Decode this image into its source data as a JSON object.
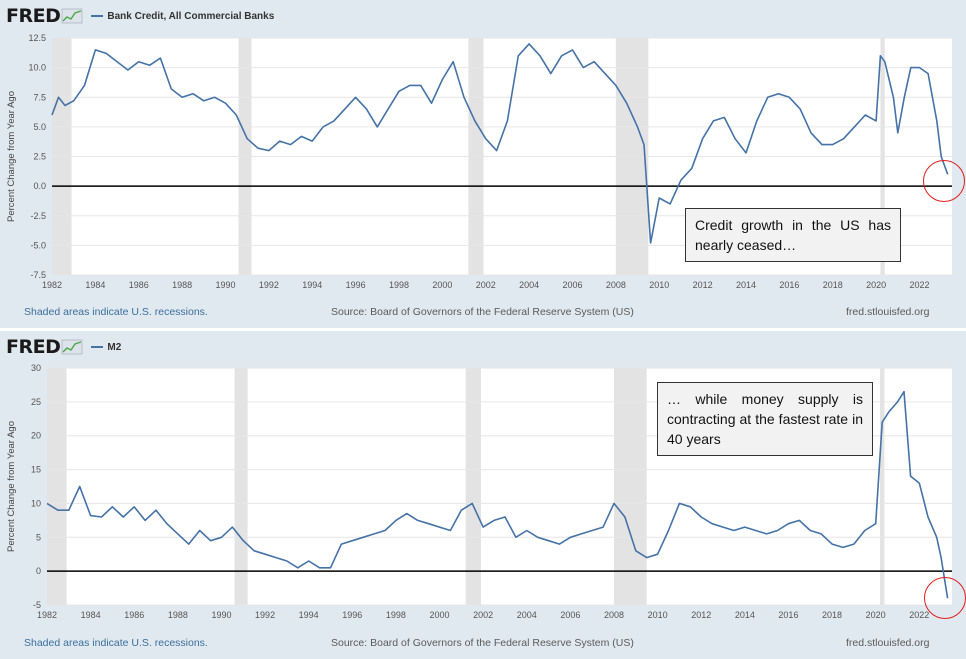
{
  "charts": [
    {
      "brand": "FRED",
      "series_label": "Bank Credit, All Commercial Banks",
      "footer_left": "Shaded areas indicate U.S. recessions.",
      "footer_mid": "Source: Board of Governors of the Federal Reserve System (US)",
      "footer_right": "fred.stlouisfed.org",
      "callout": "Credit growth in the US has nearly ceased…"
    },
    {
      "brand": "FRED",
      "series_label": "M2",
      "footer_left": "Shaded areas indicate U.S. recessions.",
      "footer_mid": "Source: Board of Governors of the Federal Reserve System (US)",
      "footer_right": "fred.stlouisfed.org",
      "callout": "… while money supply is contracting at the fastest rate in 40 years"
    }
  ],
  "colors": {
    "series": "#4572a7",
    "recession": "#e3e3e3",
    "callout_ring": "#e21d1d",
    "zero_line": "#000000"
  },
  "chart_data": [
    {
      "type": "line",
      "ylabel": "Percent Change from Year Ago",
      "xlim": [
        1982.0,
        2023.5
      ],
      "ylim": [
        -7.5,
        12.5
      ],
      "yticks": [
        12.5,
        10.0,
        7.5,
        5.0,
        2.5,
        0.0,
        -2.5,
        -5.0,
        -7.5
      ],
      "xticks": [
        1982,
        1984,
        1986,
        1988,
        1990,
        1992,
        1994,
        1996,
        1998,
        2000,
        2002,
        2004,
        2006,
        2008,
        2010,
        2012,
        2014,
        2016,
        2018,
        2020,
        2022
      ],
      "recessions": [
        [
          1982.0,
          1982.9
        ],
        [
          1990.6,
          1991.2
        ],
        [
          2001.2,
          2001.9
        ],
        [
          2008.0,
          2009.5
        ],
        [
          2020.2,
          2020.4
        ]
      ],
      "reference_line": 0,
      "series": [
        {
          "name": "Bank Credit, All Commercial Banks",
          "x": [
            1982.0,
            1982.3,
            1982.6,
            1983.0,
            1983.5,
            1984.0,
            1984.5,
            1985.0,
            1985.5,
            1986.0,
            1986.5,
            1987.0,
            1987.5,
            1988.0,
            1988.5,
            1989.0,
            1989.5,
            1990.0,
            1990.5,
            1991.0,
            1991.5,
            1992.0,
            1992.5,
            1993.0,
            1993.5,
            1994.0,
            1994.5,
            1995.0,
            1995.5,
            1996.0,
            1996.5,
            1997.0,
            1997.5,
            1998.0,
            1998.5,
            1999.0,
            1999.5,
            2000.0,
            2000.5,
            2001.0,
            2001.5,
            2002.0,
            2002.5,
            2003.0,
            2003.5,
            2004.0,
            2004.5,
            2005.0,
            2005.5,
            2006.0,
            2006.5,
            2007.0,
            2007.5,
            2008.0,
            2008.5,
            2009.0,
            2009.3,
            2009.6,
            2010.0,
            2010.5,
            2011.0,
            2011.5,
            2012.0,
            2012.5,
            2013.0,
            2013.5,
            2014.0,
            2014.5,
            2015.0,
            2015.5,
            2016.0,
            2016.5,
            2017.0,
            2017.5,
            2018.0,
            2018.5,
            2019.0,
            2019.5,
            2020.0,
            2020.2,
            2020.4,
            2020.8,
            2021.0,
            2021.3,
            2021.6,
            2022.0,
            2022.4,
            2022.8,
            2023.0,
            2023.3
          ],
          "values": [
            6.0,
            7.5,
            6.8,
            7.2,
            8.5,
            11.5,
            11.2,
            10.5,
            9.8,
            10.5,
            10.2,
            10.8,
            8.2,
            7.5,
            7.8,
            7.2,
            7.5,
            7.0,
            6.0,
            4.0,
            3.2,
            3.0,
            3.8,
            3.5,
            4.2,
            3.8,
            5.0,
            5.5,
            6.5,
            7.5,
            6.5,
            5.0,
            6.5,
            8.0,
            8.5,
            8.5,
            7.0,
            9.0,
            10.5,
            7.5,
            5.5,
            4.0,
            3.0,
            5.5,
            11.0,
            12.0,
            11.0,
            9.5,
            11.0,
            11.5,
            10.0,
            10.5,
            9.5,
            8.5,
            7.0,
            5.0,
            3.5,
            -4.8,
            -1.0,
            -1.5,
            0.5,
            1.5,
            4.0,
            5.5,
            5.8,
            4.0,
            2.8,
            5.5,
            7.5,
            7.8,
            7.5,
            6.5,
            4.5,
            3.5,
            3.5,
            4.0,
            5.0,
            6.0,
            5.5,
            11.0,
            10.5,
            7.5,
            4.5,
            7.5,
            10.0,
            10.0,
            9.5,
            5.5,
            2.5,
            1.0
          ]
        }
      ]
    },
    {
      "type": "line",
      "ylabel": "Percent Change from Year Ago",
      "xlim": [
        1982.0,
        2023.5
      ],
      "ylim": [
        -5,
        30
      ],
      "yticks": [
        30,
        25,
        20,
        15,
        10,
        5,
        0,
        -5
      ],
      "xticks": [
        1982,
        1984,
        1986,
        1988,
        1990,
        1992,
        1994,
        1996,
        1998,
        2000,
        2002,
        2004,
        2006,
        2008,
        2010,
        2012,
        2014,
        2016,
        2018,
        2020,
        2022
      ],
      "recessions": [
        [
          1982.0,
          1982.9
        ],
        [
          1990.6,
          1991.2
        ],
        [
          2001.2,
          2001.9
        ],
        [
          2008.0,
          2009.5
        ],
        [
          2020.2,
          2020.4
        ]
      ],
      "reference_line": 0,
      "series": [
        {
          "name": "M2",
          "x": [
            1982.0,
            1982.5,
            1983.0,
            1983.5,
            1984.0,
            1984.5,
            1985.0,
            1985.5,
            1986.0,
            1986.5,
            1987.0,
            1987.5,
            1988.0,
            1988.5,
            1989.0,
            1989.5,
            1990.0,
            1990.5,
            1991.0,
            1991.5,
            1992.0,
            1992.5,
            1993.0,
            1993.5,
            1994.0,
            1994.5,
            1995.0,
            1995.5,
            1996.0,
            1996.5,
            1997.0,
            1997.5,
            1998.0,
            1998.5,
            1999.0,
            1999.5,
            2000.0,
            2000.5,
            2001.0,
            2001.5,
            2002.0,
            2002.5,
            2003.0,
            2003.5,
            2004.0,
            2004.5,
            2005.0,
            2005.5,
            2006.0,
            2006.5,
            2007.0,
            2007.5,
            2008.0,
            2008.5,
            2009.0,
            2009.5,
            2010.0,
            2010.5,
            2011.0,
            2011.5,
            2012.0,
            2012.5,
            2013.0,
            2013.5,
            2014.0,
            2014.5,
            2015.0,
            2015.5,
            2016.0,
            2016.5,
            2017.0,
            2017.5,
            2018.0,
            2018.5,
            2019.0,
            2019.5,
            2020.0,
            2020.3,
            2020.6,
            2021.0,
            2021.3,
            2021.6,
            2022.0,
            2022.4,
            2022.8,
            2023.0,
            2023.3
          ],
          "values": [
            10.0,
            9.0,
            9.0,
            12.5,
            8.2,
            8.0,
            9.5,
            8.0,
            9.5,
            7.5,
            9.0,
            7.0,
            5.5,
            4.0,
            6.0,
            4.5,
            5.0,
            6.5,
            4.5,
            3.0,
            2.5,
            2.0,
            1.5,
            0.5,
            1.5,
            0.5,
            0.5,
            4.0,
            4.5,
            5.0,
            5.5,
            6.0,
            7.5,
            8.5,
            7.5,
            7.0,
            6.5,
            6.0,
            9.0,
            10.0,
            6.5,
            7.5,
            8.0,
            5.0,
            6.0,
            5.0,
            4.5,
            4.0,
            5.0,
            5.5,
            6.0,
            6.5,
            10.0,
            8.0,
            3.0,
            2.0,
            2.5,
            6.0,
            10.0,
            9.5,
            8.0,
            7.0,
            6.5,
            6.0,
            6.5,
            6.0,
            5.5,
            6.0,
            7.0,
            7.5,
            6.0,
            5.5,
            4.0,
            3.5,
            4.0,
            6.0,
            7.0,
            22.0,
            23.5,
            25.0,
            26.5,
            14.0,
            13.0,
            8.0,
            5.0,
            2.0,
            -4.0
          ]
        }
      ]
    }
  ]
}
